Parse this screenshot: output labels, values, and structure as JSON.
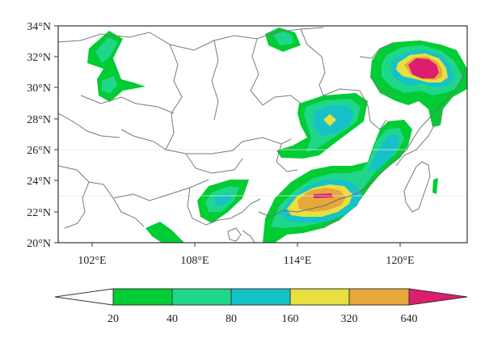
{
  "map": {
    "lat_labels": [
      "34°N",
      "32°N",
      "30°N",
      "28°N",
      "26°N",
      "24°N",
      "22°N",
      "20°N"
    ],
    "lon_labels": [
      "102°E",
      "108°E",
      "114°E",
      "120°E"
    ]
  },
  "colorbar": {
    "labels": [
      "20",
      "40",
      "80",
      "160",
      "320",
      "640"
    ],
    "colors": [
      "#ffffff",
      "#00cc33",
      "#1fd68a",
      "#16c2c8",
      "#e8e040",
      "#e6a83a",
      "#dc1e6e"
    ]
  },
  "chart_data": {
    "type": "heatmap",
    "title": "",
    "xlabel": "",
    "ylabel": "",
    "xlim": [
      98,
      126
    ],
    "ylim": [
      20,
      34
    ],
    "levels": [
      20,
      40,
      80,
      160,
      320,
      640
    ],
    "level_colors": [
      "#00cc33",
      "#1fd68a",
      "#16c2c8",
      "#e8e040",
      "#e6a83a",
      "#dc1e6e"
    ],
    "maxima": [
      {
        "lon": 123,
        "lat": 31.2,
        "level": 640
      },
      {
        "lon": 115.5,
        "lat": 23.1,
        "level": 640
      },
      {
        "lon": 114.8,
        "lat": 28,
        "level": 160
      },
      {
        "lon": 119.5,
        "lat": 25.5,
        "level": 160
      },
      {
        "lon": 107.5,
        "lat": 22.5,
        "level": 80
      },
      {
        "lon": 103.2,
        "lat": 32.2,
        "level": 40
      },
      {
        "lon": 111.5,
        "lat": 33.2,
        "level": 40
      }
    ]
  }
}
